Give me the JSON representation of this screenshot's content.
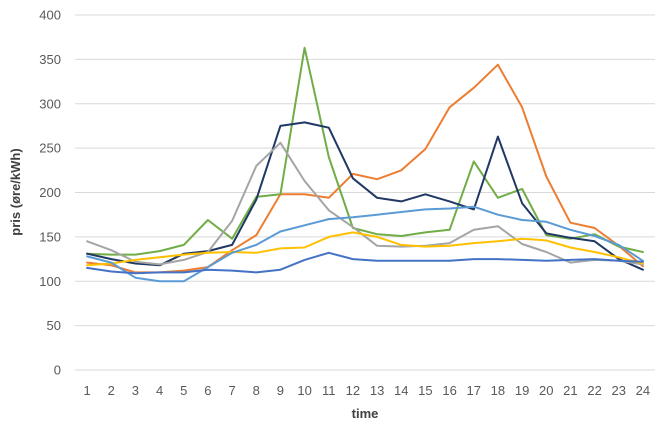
{
  "chart_data": {
    "type": "line",
    "xlabel": "time",
    "ylabel": "pris (øre/kWh)",
    "ylim": [
      0,
      400
    ],
    "yticks": [
      0,
      50,
      100,
      150,
      200,
      250,
      300,
      350,
      400
    ],
    "grid": true,
    "legend": "none",
    "categories": [
      "1",
      "2",
      "3",
      "4",
      "5",
      "6",
      "7",
      "8",
      "9",
      "10",
      "11",
      "12",
      "13",
      "14",
      "15",
      "16",
      "17",
      "18",
      "19",
      "20",
      "21",
      "22",
      "23",
      "24"
    ],
    "series": [
      {
        "color": "#ED7D31",
        "values": [
          121,
          118,
          110,
          110,
          112,
          116,
          135,
          152,
          198,
          198,
          194,
          221,
          215,
          225,
          249,
          296,
          318,
          344,
          296,
          218,
          166,
          160,
          140,
          117
        ]
      },
      {
        "color": "#70AD47",
        "values": [
          131,
          130,
          130,
          134,
          141,
          169,
          148,
          195,
          198,
          363,
          240,
          160,
          153,
          151,
          155,
          158,
          235,
          194,
          204,
          152,
          148,
          153,
          139,
          133
        ]
      },
      {
        "color": "#203864",
        "values": [
          131,
          125,
          120,
          118,
          131,
          134,
          141,
          192,
          275,
          279,
          273,
          216,
          194,
          190,
          198,
          190,
          181,
          263,
          188,
          154,
          149,
          145,
          125,
          113
        ]
      },
      {
        "color": "#A5A5A5",
        "values": [
          145,
          135,
          122,
          119,
          124,
          133,
          168,
          230,
          256,
          213,
          180,
          161,
          140,
          139,
          140,
          143,
          158,
          162,
          142,
          133,
          121,
          124,
          123,
          119
        ]
      },
      {
        "color": "#FFC000",
        "values": [
          118,
          120,
          124,
          127,
          130,
          132,
          133,
          132,
          137,
          138,
          150,
          155,
          150,
          141,
          139,
          140,
          143,
          145,
          148,
          146,
          138,
          133,
          127,
          120
        ]
      },
      {
        "color": "#5B9BD5",
        "values": [
          128,
          121,
          104,
          100,
          100,
          116,
          132,
          141,
          156,
          163,
          170,
          172,
          175,
          178,
          181,
          182,
          184,
          175,
          169,
          167,
          158,
          151,
          141,
          123
        ]
      },
      {
        "color": "#4472C4",
        "values": [
          115,
          111,
          109,
          110,
          110,
          113,
          112,
          110,
          113,
          124,
          132,
          125,
          123,
          123,
          123,
          123,
          125,
          125,
          124,
          123,
          124,
          125,
          123,
          122
        ]
      }
    ]
  }
}
